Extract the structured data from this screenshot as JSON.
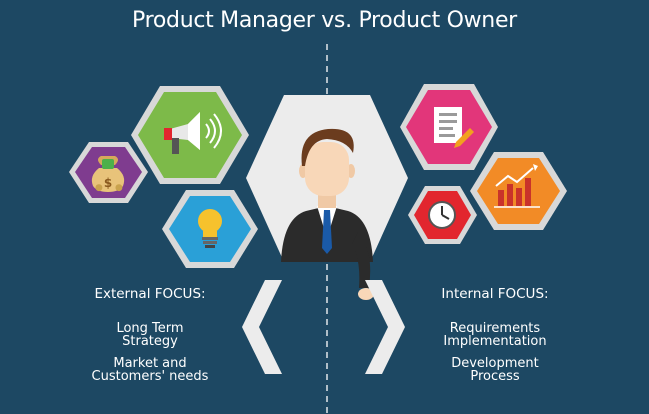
{
  "title": "Product Manager vs. Product Owner",
  "left": {
    "heading": "External FOCUS:",
    "items": [
      "Long Term\nStrategy",
      "Market and\nCustomers' needs"
    ]
  },
  "right": {
    "heading": "Internal FOCUS:",
    "items": [
      "Requirements\nImplementation",
      "Development\nProcess"
    ]
  },
  "icons": {
    "left": [
      "money-bag-icon",
      "megaphone-icon",
      "lightbulb-icon"
    ],
    "right": [
      "document-icon",
      "growth-chart-icon",
      "clock-icon"
    ],
    "center": "businessman-figure"
  },
  "colors": {
    "background": "#1d4863",
    "purple": "#7f3c8f",
    "green": "#7dba49",
    "blue": "#2aa0d7",
    "pink": "#e2367a",
    "orange": "#f28b26",
    "red": "#e2262e",
    "hex_border": "#d8d8d8",
    "center_hex": "#ececec"
  }
}
